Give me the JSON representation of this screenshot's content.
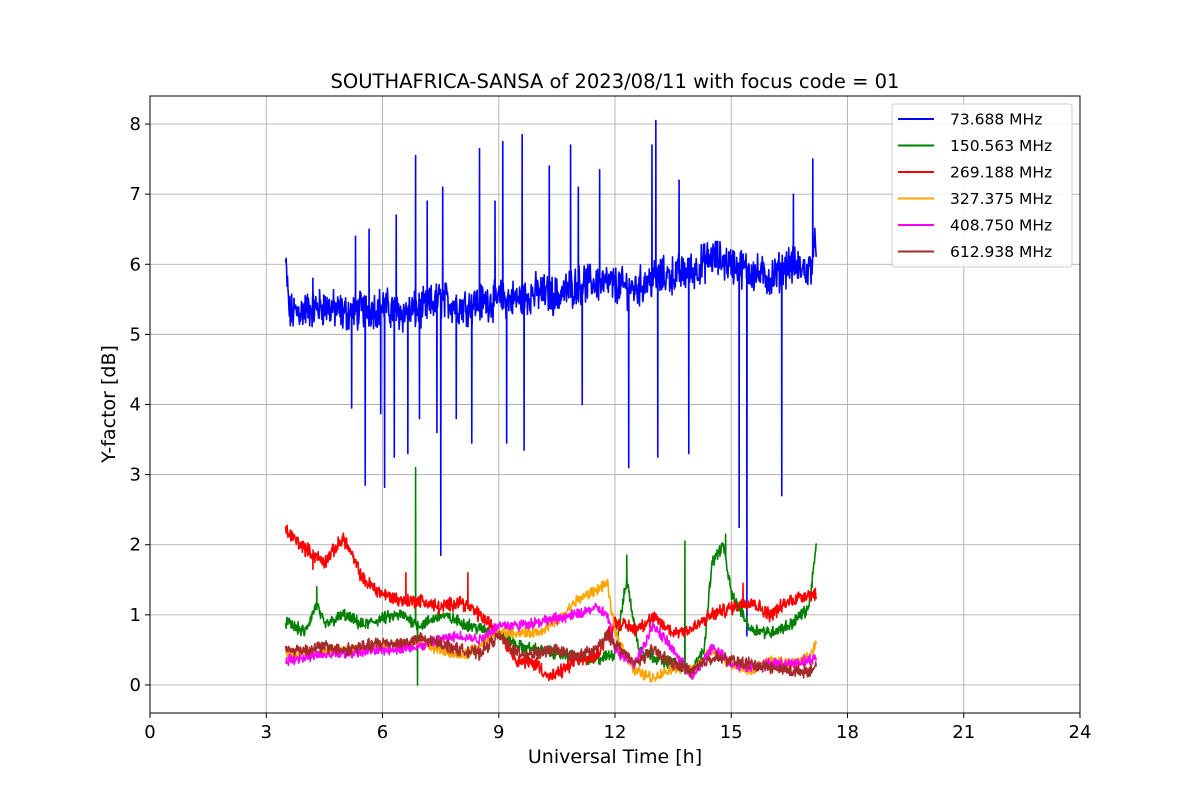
{
  "chart_data": {
    "type": "line",
    "title": "SOUTHAFRICA-SANSA of 2023/08/11 with focus code = 01",
    "xlabel": "Universal Time [h]",
    "ylabel": "Y-factor [dB]",
    "xlim": [
      0,
      24
    ],
    "ylim": [
      -0.4,
      8.4
    ],
    "xticks": [
      0,
      3,
      6,
      9,
      12,
      15,
      18,
      21,
      24
    ],
    "yticks": [
      0,
      1,
      2,
      3,
      4,
      5,
      6,
      7,
      8
    ],
    "grid": true,
    "legend_position": "top-right",
    "series": [
      {
        "name": " 73.688 MHz",
        "color": "#0000ff",
        "x": [
          3.5,
          3.6,
          4.0,
          4.5,
          5.0,
          5.5,
          6.0,
          6.5,
          7.0,
          7.5,
          8.0,
          8.5,
          9.0,
          9.5,
          10.0,
          10.5,
          11.0,
          11.5,
          12.0,
          12.5,
          13.0,
          13.5,
          14.0,
          14.5,
          15.0,
          15.5,
          16.0,
          16.5,
          17.0,
          17.2
        ],
        "values": [
          6.0,
          5.3,
          5.35,
          5.4,
          5.3,
          5.35,
          5.4,
          5.3,
          5.35,
          5.5,
          5.4,
          5.45,
          5.5,
          5.5,
          5.6,
          5.55,
          5.7,
          5.75,
          5.7,
          5.65,
          5.8,
          5.85,
          5.9,
          6.1,
          6.0,
          5.9,
          5.8,
          6.0,
          5.9,
          6.3
        ],
        "spikes": [
          {
            "x": 4.2,
            "y": 5.8
          },
          {
            "x": 5.2,
            "y": 3.95
          },
          {
            "x": 5.3,
            "y": 6.4
          },
          {
            "x": 5.55,
            "y": 2.85
          },
          {
            "x": 5.65,
            "y": 6.5
          },
          {
            "x": 5.95,
            "y": 3.87
          },
          {
            "x": 6.05,
            "y": 2.82
          },
          {
            "x": 6.3,
            "y": 3.25
          },
          {
            "x": 6.35,
            "y": 6.7
          },
          {
            "x": 6.65,
            "y": 3.3
          },
          {
            "x": 6.85,
            "y": 7.55
          },
          {
            "x": 6.95,
            "y": 3.8
          },
          {
            "x": 7.15,
            "y": 6.9
          },
          {
            "x": 7.4,
            "y": 3.6
          },
          {
            "x": 7.5,
            "y": 1.85
          },
          {
            "x": 7.55,
            "y": 7.1
          },
          {
            "x": 7.9,
            "y": 3.8
          },
          {
            "x": 8.3,
            "y": 3.45
          },
          {
            "x": 8.5,
            "y": 7.65
          },
          {
            "x": 8.9,
            "y": 6.9
          },
          {
            "x": 9.1,
            "y": 7.75
          },
          {
            "x": 9.2,
            "y": 3.45
          },
          {
            "x": 9.6,
            "y": 7.85
          },
          {
            "x": 9.65,
            "y": 3.35
          },
          {
            "x": 10.3,
            "y": 7.4
          },
          {
            "x": 10.85,
            "y": 7.7
          },
          {
            "x": 11.05,
            "y": 7.1
          },
          {
            "x": 11.15,
            "y": 4.0
          },
          {
            "x": 11.6,
            "y": 7.35
          },
          {
            "x": 12.35,
            "y": 3.1
          },
          {
            "x": 12.95,
            "y": 7.7
          },
          {
            "x": 13.05,
            "y": 8.05
          },
          {
            "x": 13.1,
            "y": 3.25
          },
          {
            "x": 13.65,
            "y": 7.2
          },
          {
            "x": 13.9,
            "y": 3.3
          },
          {
            "x": 15.2,
            "y": 2.25
          },
          {
            "x": 15.4,
            "y": 0.7
          },
          {
            "x": 16.3,
            "y": 2.7
          },
          {
            "x": 16.6,
            "y": 7.0
          },
          {
            "x": 17.1,
            "y": 7.5
          }
        ]
      },
      {
        "name": "150.563 MHz",
        "color": "#008000",
        "x": [
          3.5,
          4.0,
          4.3,
          4.5,
          5.0,
          5.5,
          6.0,
          6.5,
          6.8,
          7.0,
          7.5,
          8.0,
          8.5,
          9.0,
          9.5,
          10.0,
          10.5,
          11.0,
          11.5,
          12.0,
          12.3,
          12.6,
          13.0,
          13.5,
          14.0,
          14.3,
          14.5,
          14.8,
          15.0,
          15.5,
          16.0,
          16.5,
          17.0,
          17.2
        ],
        "values": [
          0.9,
          0.75,
          1.15,
          0.85,
          1.0,
          0.85,
          0.95,
          1.0,
          0.9,
          0.85,
          1.0,
          0.9,
          0.8,
          0.75,
          0.55,
          0.5,
          0.45,
          0.4,
          0.35,
          0.45,
          1.5,
          0.55,
          0.4,
          0.3,
          0.2,
          0.5,
          1.75,
          2.0,
          1.3,
          0.8,
          0.75,
          0.85,
          1.1,
          2.0
        ],
        "spikes": [
          {
            "x": 4.3,
            "y": 1.4
          },
          {
            "x": 6.85,
            "y": 3.1
          },
          {
            "x": 6.9,
            "y": 0.0
          },
          {
            "x": 12.3,
            "y": 1.85
          },
          {
            "x": 13.8,
            "y": 2.05
          },
          {
            "x": 14.85,
            "y": 2.15
          }
        ]
      },
      {
        "name": "269.188 MHz",
        "color": "#ff0000",
        "x": [
          3.5,
          4.0,
          4.5,
          5.0,
          5.5,
          6.0,
          6.5,
          7.0,
          7.5,
          8.0,
          8.5,
          9.0,
          9.5,
          10.0,
          10.3,
          10.5,
          11.0,
          11.5,
          12.0,
          12.5,
          13.0,
          13.5,
          14.0,
          14.5,
          15.0,
          15.5,
          16.0,
          16.5,
          17.0,
          17.2
        ],
        "values": [
          2.2,
          1.95,
          1.75,
          2.1,
          1.5,
          1.3,
          1.2,
          1.2,
          1.1,
          1.2,
          1.0,
          0.75,
          0.35,
          0.3,
          0.1,
          0.15,
          0.35,
          0.4,
          0.9,
          0.8,
          0.95,
          0.75,
          0.8,
          1.0,
          1.1,
          1.2,
          1.0,
          1.2,
          1.3,
          1.3
        ],
        "spikes": [
          {
            "x": 4.2,
            "y": 1.65
          },
          {
            "x": 6.6,
            "y": 1.6
          },
          {
            "x": 8.2,
            "y": 1.6
          },
          {
            "x": 15.3,
            "y": 1.45
          }
        ]
      },
      {
        "name": "327.375 MHz",
        "color": "#ffa500",
        "x": [
          3.5,
          4.0,
          5.0,
          6.0,
          7.0,
          7.5,
          8.0,
          8.5,
          9.0,
          9.5,
          10.0,
          10.5,
          11.0,
          11.5,
          11.8,
          12.0,
          12.5,
          13.0,
          13.5,
          14.0,
          14.5,
          15.0,
          15.5,
          16.0,
          16.5,
          17.0,
          17.2
        ],
        "values": [
          0.45,
          0.45,
          0.5,
          0.55,
          0.6,
          0.5,
          0.4,
          0.55,
          0.75,
          0.75,
          0.75,
          0.9,
          1.2,
          1.35,
          1.45,
          0.75,
          0.2,
          0.1,
          0.25,
          0.2,
          0.5,
          0.3,
          0.2,
          0.35,
          0.3,
          0.4,
          0.6
        ],
        "spikes": []
      },
      {
        "name": "408.750 MHz",
        "color": "#ff00ff",
        "x": [
          3.5,
          4.0,
          5.0,
          6.0,
          7.0,
          7.5,
          8.0,
          8.5,
          9.0,
          9.5,
          10.0,
          10.5,
          11.0,
          11.5,
          11.8,
          12.0,
          12.5,
          13.0,
          13.5,
          14.0,
          14.5,
          15.0,
          15.5,
          16.0,
          16.5,
          17.0,
          17.2
        ],
        "values": [
          0.35,
          0.4,
          0.45,
          0.5,
          0.55,
          0.65,
          0.7,
          0.65,
          0.85,
          0.85,
          0.9,
          0.95,
          1.0,
          1.1,
          1.0,
          0.5,
          0.3,
          0.85,
          0.5,
          0.1,
          0.55,
          0.3,
          0.25,
          0.3,
          0.3,
          0.35,
          0.4
        ],
        "spikes": []
      },
      {
        "name": "612.938 MHz",
        "color": "#a52a2a",
        "x": [
          3.5,
          4.0,
          4.5,
          5.0,
          5.5,
          6.0,
          6.5,
          7.0,
          7.5,
          8.0,
          8.5,
          9.0,
          9.5,
          10.0,
          10.5,
          11.0,
          11.5,
          11.8,
          12.0,
          12.5,
          13.0,
          13.5,
          14.0,
          14.5,
          15.0,
          15.5,
          16.0,
          16.5,
          17.0,
          17.2
        ],
        "values": [
          0.5,
          0.5,
          0.55,
          0.5,
          0.55,
          0.6,
          0.6,
          0.65,
          0.6,
          0.5,
          0.45,
          0.7,
          0.45,
          0.45,
          0.5,
          0.4,
          0.5,
          0.7,
          0.6,
          0.3,
          0.5,
          0.3,
          0.2,
          0.4,
          0.35,
          0.3,
          0.25,
          0.2,
          0.2,
          0.25
        ],
        "spikes": []
      }
    ]
  }
}
